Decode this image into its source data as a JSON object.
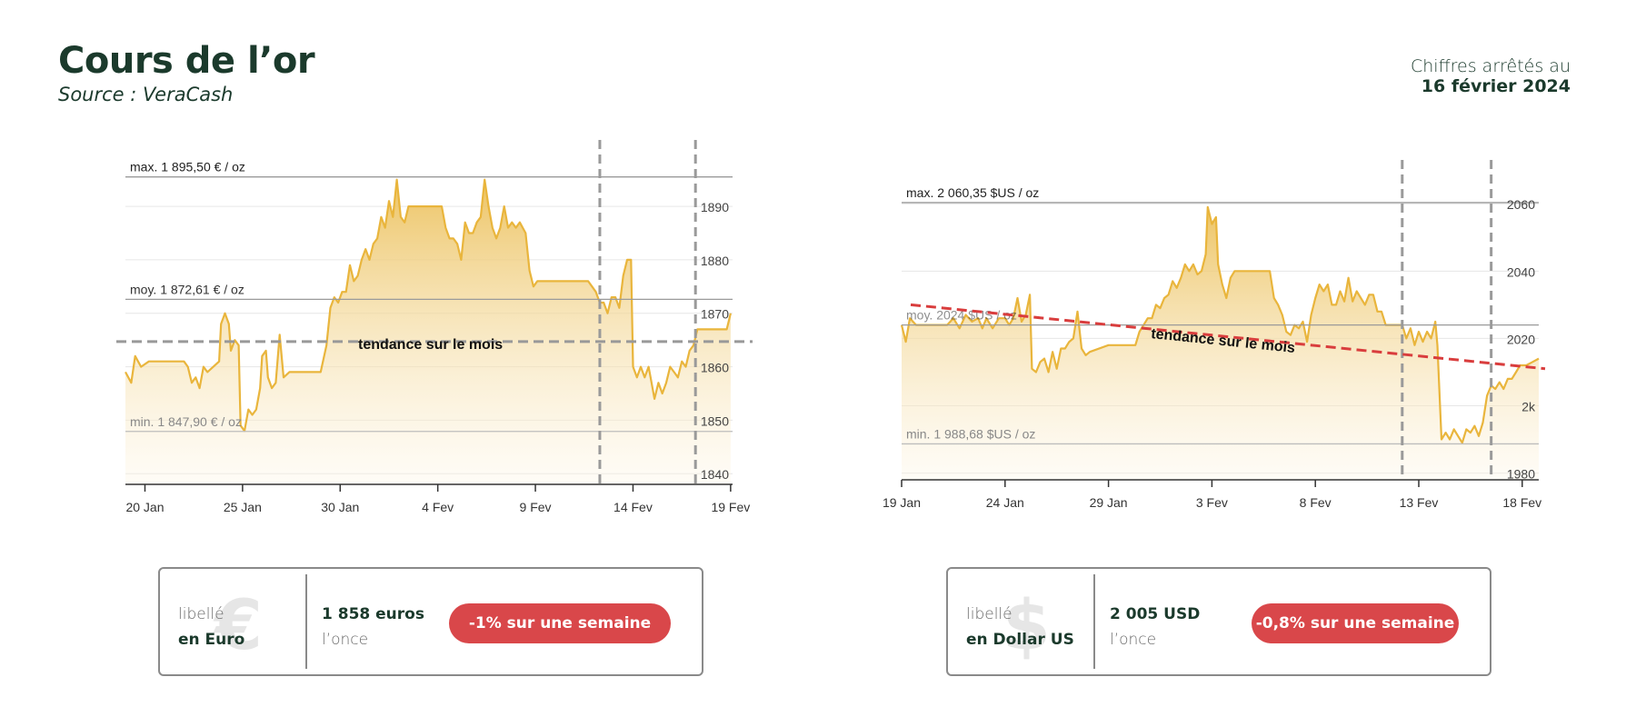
{
  "header": {
    "title": "Cours de l’or",
    "source": "Source : VeraCash",
    "asof_line1": "Chiffres arrêtés au",
    "asof_line2": "16 février 2024"
  },
  "chart_data": [
    {
      "type": "area",
      "currency": "EUR",
      "ylim": [
        1838,
        1898
      ],
      "y_ticks": [
        1840,
        1850,
        1860,
        1870,
        1880,
        1890
      ],
      "y_tick_labels": [
        "1840",
        "1850",
        "1860",
        "1870",
        "1880",
        "1890"
      ],
      "x_tick_labels": [
        "20 Jan",
        "25 Jan",
        "30 Jan",
        "4 Fev",
        "9 Fev",
        "14 Fev",
        "19 Fev"
      ],
      "x_tick_days": [
        1,
        6,
        11,
        16,
        21,
        26,
        31
      ],
      "xlim": [
        0,
        31.1
      ],
      "max": {
        "value": 1895.5,
        "label": "max. 1 895,50 € / oz"
      },
      "avg": {
        "value": 1872.61,
        "label": "moy. 1 872,61 € / oz"
      },
      "min": {
        "value": 1847.9,
        "label": "min. 1 847,90 € / oz"
      },
      "trend": {
        "label": "tendance sur le mois",
        "y_start": 1864.7,
        "y_end": 1864.7,
        "color": "#999999"
      },
      "week_markers_days": [
        24.3,
        29.2
      ],
      "line_color": "#e9b53c",
      "points": [
        [
          0,
          1859
        ],
        [
          0.3,
          1857
        ],
        [
          0.5,
          1862
        ],
        [
          0.8,
          1860
        ],
        [
          1.2,
          1861
        ],
        [
          2,
          1861
        ],
        [
          3,
          1861
        ],
        [
          3.2,
          1860
        ],
        [
          3.4,
          1857
        ],
        [
          3.6,
          1858
        ],
        [
          3.8,
          1856
        ],
        [
          4,
          1860
        ],
        [
          4.2,
          1859
        ],
        [
          4.5,
          1860
        ],
        [
          4.8,
          1861
        ],
        [
          4.9,
          1868
        ],
        [
          5.1,
          1870
        ],
        [
          5.3,
          1868
        ],
        [
          5.4,
          1863
        ],
        [
          5.6,
          1865
        ],
        [
          5.8,
          1864
        ],
        [
          5.9,
          1849
        ],
        [
          6.1,
          1848
        ],
        [
          6.3,
          1852
        ],
        [
          6.5,
          1851
        ],
        [
          6.7,
          1852
        ],
        [
          6.9,
          1856
        ],
        [
          7,
          1862
        ],
        [
          7.2,
          1863
        ],
        [
          7.3,
          1858
        ],
        [
          7.5,
          1856
        ],
        [
          7.7,
          1857
        ],
        [
          7.9,
          1866
        ],
        [
          8.1,
          1858
        ],
        [
          8.4,
          1859
        ],
        [
          9,
          1859
        ],
        [
          9.6,
          1859
        ],
        [
          10,
          1859
        ],
        [
          10.3,
          1864
        ],
        [
          10.5,
          1871
        ],
        [
          10.7,
          1873
        ],
        [
          10.9,
          1872
        ],
        [
          11.1,
          1874
        ],
        [
          11.3,
          1874
        ],
        [
          11.5,
          1879
        ],
        [
          11.7,
          1876
        ],
        [
          11.9,
          1877
        ],
        [
          12.1,
          1880
        ],
        [
          12.3,
          1882
        ],
        [
          12.5,
          1880
        ],
        [
          12.7,
          1883
        ],
        [
          12.9,
          1884
        ],
        [
          13.1,
          1888
        ],
        [
          13.3,
          1886
        ],
        [
          13.5,
          1891
        ],
        [
          13.7,
          1888
        ],
        [
          13.9,
          1895
        ],
        [
          14.1,
          1888
        ],
        [
          14.3,
          1887
        ],
        [
          14.5,
          1890
        ],
        [
          14.8,
          1890
        ],
        [
          15.5,
          1890
        ],
        [
          16.2,
          1890
        ],
        [
          16.4,
          1886
        ],
        [
          16.6,
          1884
        ],
        [
          16.8,
          1884
        ],
        [
          17,
          1883
        ],
        [
          17.2,
          1880
        ],
        [
          17.4,
          1887
        ],
        [
          17.6,
          1885
        ],
        [
          17.8,
          1885
        ],
        [
          18,
          1887
        ],
        [
          18.2,
          1888
        ],
        [
          18.4,
          1895
        ],
        [
          18.6,
          1890
        ],
        [
          18.8,
          1886
        ],
        [
          19,
          1884
        ],
        [
          19.2,
          1886
        ],
        [
          19.4,
          1890
        ],
        [
          19.6,
          1886
        ],
        [
          19.8,
          1887
        ],
        [
          20,
          1886
        ],
        [
          20.2,
          1887
        ],
        [
          20.5,
          1885
        ],
        [
          20.7,
          1878
        ],
        [
          20.9,
          1875
        ],
        [
          21.1,
          1876
        ],
        [
          21.3,
          1876
        ],
        [
          23,
          1876
        ],
        [
          23.7,
          1876
        ],
        [
          23.9,
          1875
        ],
        [
          24.1,
          1874
        ],
        [
          24.3,
          1872
        ],
        [
          24.5,
          1872
        ],
        [
          24.7,
          1870
        ],
        [
          24.9,
          1873
        ],
        [
          25.1,
          1873
        ],
        [
          25.3,
          1871
        ],
        [
          25.5,
          1877
        ],
        [
          25.7,
          1880
        ],
        [
          25.9,
          1880
        ],
        [
          26,
          1860
        ],
        [
          26.2,
          1858
        ],
        [
          26.4,
          1860
        ],
        [
          26.6,
          1858
        ],
        [
          26.8,
          1860
        ],
        [
          26.9,
          1858
        ],
        [
          27.1,
          1854
        ],
        [
          27.3,
          1857
        ],
        [
          27.5,
          1855
        ],
        [
          27.7,
          1857
        ],
        [
          27.9,
          1860
        ],
        [
          28.1,
          1859
        ],
        [
          28.3,
          1858
        ],
        [
          28.5,
          1861
        ],
        [
          28.7,
          1860
        ],
        [
          28.9,
          1863
        ],
        [
          29.1,
          1864
        ],
        [
          29.3,
          1867
        ],
        [
          29.5,
          1867
        ],
        [
          30.5,
          1867
        ],
        [
          30.8,
          1867
        ],
        [
          31,
          1870
        ]
      ]
    },
    {
      "type": "area",
      "currency": "USD",
      "ylim": [
        1978,
        2066
      ],
      "y_ticks": [
        1980,
        2000,
        2020,
        2040,
        2060
      ],
      "y_tick_labels": [
        "1980",
        "2k",
        "2020",
        "2040",
        "2060"
      ],
      "x_tick_labels": [
        "19 Jan",
        "24 Jan",
        "29 Jan",
        "3 Fev",
        "8 Fev",
        "13 Fev",
        "18 Fev"
      ],
      "x_tick_days": [
        0,
        5,
        10,
        15,
        20,
        25,
        30
      ],
      "xlim": [
        0,
        30.8
      ],
      "max": {
        "value": 2060.35,
        "label": "max. 2 060,35 $US / oz"
      },
      "avg": {
        "value": 2024,
        "label": "moy. 2024 $US / oz"
      },
      "min": {
        "value": 1988.68,
        "label": "min. 1 988,68 $US / oz"
      },
      "trend": {
        "label": "tendance sur le mois",
        "y_start": 2030,
        "y_end": 2011,
        "color": "#d93d3d"
      },
      "week_markers_days": [
        24.2,
        28.5
      ],
      "line_color": "#e9b53c",
      "points": [
        [
          0,
          2024
        ],
        [
          0.2,
          2019
        ],
        [
          0.4,
          2026
        ],
        [
          0.7,
          2024
        ],
        [
          1,
          2024
        ],
        [
          1.5,
          2024
        ],
        [
          2.2,
          2024
        ],
        [
          2.5,
          2026
        ],
        [
          2.8,
          2023
        ],
        [
          3.1,
          2027
        ],
        [
          3.4,
          2025
        ],
        [
          3.7,
          2026
        ],
        [
          3.9,
          2023
        ],
        [
          4.1,
          2026
        ],
        [
          4.4,
          2023
        ],
        [
          4.7,
          2026
        ],
        [
          5,
          2026
        ],
        [
          5.2,
          2024
        ],
        [
          5.4,
          2026
        ],
        [
          5.6,
          2032
        ],
        [
          5.8,
          2025
        ],
        [
          6,
          2027
        ],
        [
          6.2,
          2033
        ],
        [
          6.3,
          2011
        ],
        [
          6.5,
          2010
        ],
        [
          6.7,
          2013
        ],
        [
          6.9,
          2014
        ],
        [
          7.1,
          2010
        ],
        [
          7.3,
          2016
        ],
        [
          7.5,
          2011
        ],
        [
          7.7,
          2017
        ],
        [
          7.9,
          2017
        ],
        [
          8.1,
          2019
        ],
        [
          8.3,
          2020
        ],
        [
          8.5,
          2028
        ],
        [
          8.7,
          2017
        ],
        [
          8.9,
          2015
        ],
        [
          9.1,
          2016
        ],
        [
          10,
          2018
        ],
        [
          11,
          2018
        ],
        [
          11.3,
          2018
        ],
        [
          11.5,
          2022
        ],
        [
          11.7,
          2024
        ],
        [
          11.9,
          2026
        ],
        [
          12.1,
          2026
        ],
        [
          12.3,
          2030
        ],
        [
          12.5,
          2029
        ],
        [
          12.7,
          2032
        ],
        [
          12.9,
          2033
        ],
        [
          13.1,
          2037
        ],
        [
          13.3,
          2035
        ],
        [
          13.5,
          2038
        ],
        [
          13.7,
          2042
        ],
        [
          13.9,
          2040
        ],
        [
          14.1,
          2042
        ],
        [
          14.3,
          2039
        ],
        [
          14.5,
          2040
        ],
        [
          14.7,
          2045
        ],
        [
          14.8,
          2059
        ],
        [
          15,
          2054
        ],
        [
          15.2,
          2056
        ],
        [
          15.3,
          2042
        ],
        [
          15.5,
          2036
        ],
        [
          15.7,
          2032
        ],
        [
          15.9,
          2038
        ],
        [
          16.1,
          2040
        ],
        [
          17,
          2040
        ],
        [
          17.8,
          2040
        ],
        [
          18,
          2032
        ],
        [
          18.2,
          2030
        ],
        [
          18.4,
          2027
        ],
        [
          18.6,
          2022
        ],
        [
          18.8,
          2021
        ],
        [
          19,
          2024
        ],
        [
          19.2,
          2023
        ],
        [
          19.4,
          2025
        ],
        [
          19.6,
          2019
        ],
        [
          19.8,
          2027
        ],
        [
          20,
          2032
        ],
        [
          20.2,
          2036
        ],
        [
          20.4,
          2034
        ],
        [
          20.6,
          2036
        ],
        [
          20.8,
          2030
        ],
        [
          21,
          2030
        ],
        [
          21.2,
          2034
        ],
        [
          21.4,
          2031
        ],
        [
          21.6,
          2038
        ],
        [
          21.8,
          2031
        ],
        [
          22,
          2034
        ],
        [
          22.2,
          2032
        ],
        [
          22.4,
          2030
        ],
        [
          22.6,
          2033
        ],
        [
          22.8,
          2033
        ],
        [
          23,
          2028
        ],
        [
          23.2,
          2028
        ],
        [
          23.4,
          2024
        ],
        [
          23.6,
          2024
        ],
        [
          24,
          2024
        ],
        [
          24.2,
          2024
        ],
        [
          24.4,
          2020
        ],
        [
          24.6,
          2023
        ],
        [
          24.8,
          2018
        ],
        [
          25,
          2022
        ],
        [
          25.2,
          2019
        ],
        [
          25.4,
          2022
        ],
        [
          25.6,
          2020
        ],
        [
          25.8,
          2025
        ],
        [
          25.9,
          2018
        ],
        [
          26.1,
          1990
        ],
        [
          26.3,
          1992
        ],
        [
          26.5,
          1990
        ],
        [
          26.7,
          1993
        ],
        [
          26.9,
          1991
        ],
        [
          27.1,
          1989
        ],
        [
          27.3,
          1993
        ],
        [
          27.5,
          1992
        ],
        [
          27.7,
          1994
        ],
        [
          27.9,
          1991
        ],
        [
          28.1,
          1995
        ],
        [
          28.3,
          2003
        ],
        [
          28.5,
          2006
        ],
        [
          28.7,
          2005
        ],
        [
          28.9,
          2007
        ],
        [
          29.1,
          2005
        ],
        [
          29.3,
          2008
        ],
        [
          29.5,
          2008
        ],
        [
          29.7,
          2010
        ],
        [
          29.9,
          2012
        ],
        [
          30.2,
          2012
        ],
        [
          30.5,
          2013
        ],
        [
          30.8,
          2014
        ]
      ]
    }
  ],
  "boxes": [
    {
      "symbol": "€",
      "label1": "libellé",
      "label2": "en Euro",
      "price": "1 858 euros",
      "unit": "l’once",
      "badge": "-1% sur une semaine"
    },
    {
      "symbol": "$",
      "label1": "libellé",
      "label2": "en Dollar US",
      "price": "2 005  USD",
      "unit": "l’once",
      "badge": "-0,8% sur une semaine"
    }
  ],
  "colors": {
    "title": "#1b3a2c",
    "gold": "#e9b53c",
    "badge": "#d9474a",
    "trend_usd": "#d93d3d"
  }
}
